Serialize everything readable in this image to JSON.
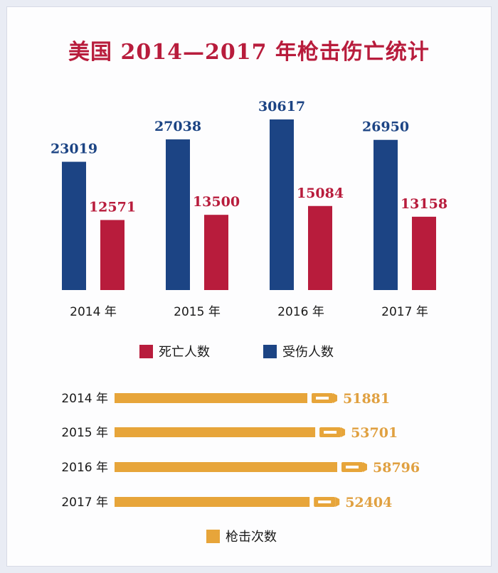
{
  "title": "美国 2014—2017 年枪击伤亡统计",
  "colors": {
    "injured": "#1c4484",
    "deaths": "#b81c3c",
    "incidents": "#e7a53a",
    "incident_label": "#e0a040",
    "title": "#b81c3c"
  },
  "legend_top": [
    {
      "label": "死亡人数",
      "color": "#b81c3c"
    },
    {
      "label": "受伤人数",
      "color": "#1c4484"
    }
  ],
  "legend_bottom": [
    {
      "label": "枪击次数",
      "color": "#e7a53a"
    }
  ],
  "chart_data": [
    {
      "type": "bar",
      "categories": [
        "2014 年",
        "2015 年",
        "2016 年",
        "2017 年"
      ],
      "series": [
        {
          "name": "受伤人数",
          "values": [
            23019,
            27038,
            30617,
            26950
          ]
        },
        {
          "name": "死亡人数",
          "values": [
            12571,
            13500,
            15084,
            13158
          ]
        }
      ]
    },
    {
      "type": "bar",
      "orientation": "horizontal",
      "categories": [
        "2014 年",
        "2015 年",
        "2016 年",
        "2017 年"
      ],
      "series": [
        {
          "name": "枪击次数",
          "values": [
            51881,
            53701,
            58796,
            52404
          ]
        }
      ]
    }
  ]
}
